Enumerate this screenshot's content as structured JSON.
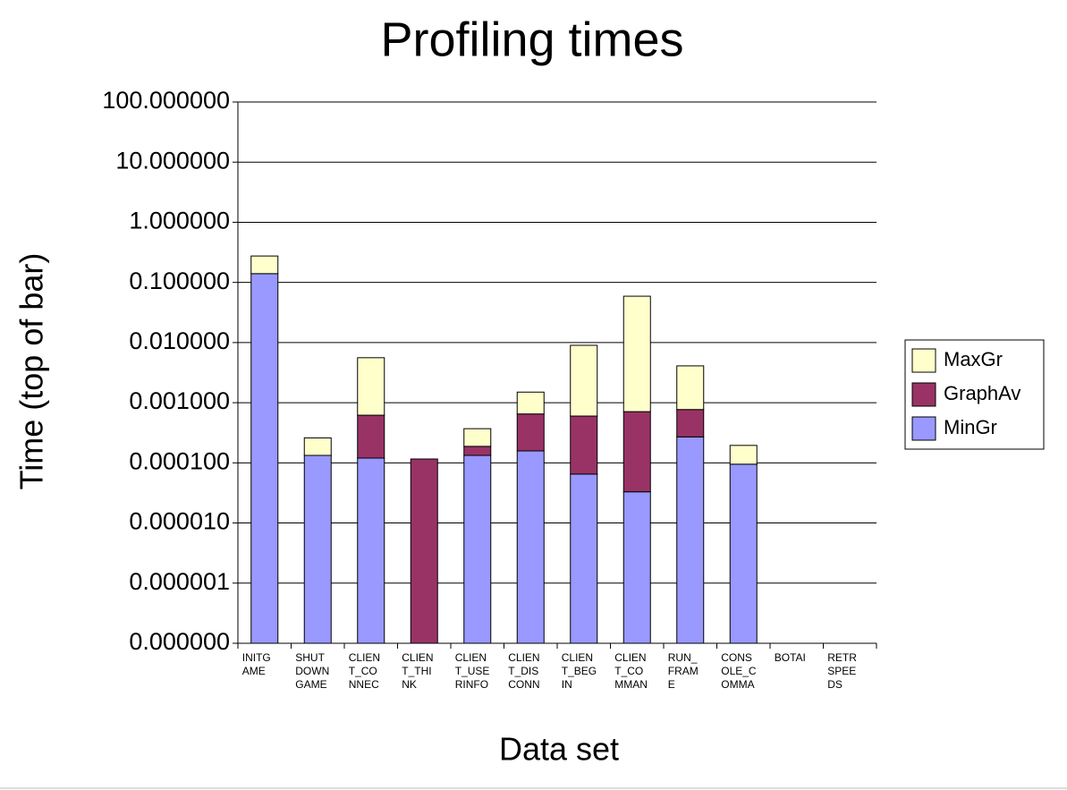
{
  "chart_data": {
    "type": "bar",
    "stacked": true,
    "log_scale": true,
    "title": "Profiling times",
    "y_label": "Time (top of bar)",
    "x_label": "Data set",
    "categories": [
      [
        "INITG",
        "AME"
      ],
      [
        "SHUT",
        "DOWN",
        "GAME"
      ],
      [
        "CLIEN",
        "T_CO",
        "NNEC"
      ],
      [
        "CLIEN",
        "T_THI",
        "NK"
      ],
      [
        "CLIEN",
        "T_USE",
        "RINFO"
      ],
      [
        "CLIEN",
        "T_DIS",
        "CONN"
      ],
      [
        "CLIEN",
        "T_BEG",
        "IN"
      ],
      [
        "CLIEN",
        "T_CO",
        "MMAN"
      ],
      [
        "RUN_",
        "FRAM",
        "E"
      ],
      [
        "CONS",
        "OLE_C",
        "OMMA"
      ],
      [
        "BOTAI"
      ],
      [
        "RETR",
        "SPEE",
        "DS"
      ]
    ],
    "series": [
      {
        "name": "MinGr",
        "color": "#9999ff",
        "values": [
          0.14,
          0.000133,
          0.00012,
          null,
          0.000133,
          0.000158,
          6.5e-05,
          3.3e-05,
          0.00027,
          9.5e-05,
          null,
          null
        ]
      },
      {
        "name": "GraphAv",
        "color": "#993366",
        "values": [
          null,
          null,
          0.00062,
          0.000116,
          0.000188,
          0.00065,
          0.0006,
          0.00071,
          0.00077,
          null,
          null,
          null
        ]
      },
      {
        "name": "MaxGr",
        "color": "#ffffcc",
        "values": [
          0.275,
          0.00026,
          0.0056,
          null,
          0.00037,
          0.0015,
          0.009,
          0.059,
          0.0041,
          0.000195,
          null,
          null
        ]
      }
    ],
    "ylim": [
      1e-07,
      100
    ],
    "yticks": [
      {
        "value": 1e-07,
        "label": "0.000000"
      },
      {
        "value": 1e-06,
        "label": "0.000001"
      },
      {
        "value": 1e-05,
        "label": "0.000010"
      },
      {
        "value": 0.0001,
        "label": "0.000100"
      },
      {
        "value": 0.001,
        "label": "0.001000"
      },
      {
        "value": 0.01,
        "label": "0.010000"
      },
      {
        "value": 0.1,
        "label": "0.100000"
      },
      {
        "value": 1,
        "label": "1.000000"
      },
      {
        "value": 10,
        "label": "10.000000"
      },
      {
        "value": 100,
        "label": "100.000000"
      }
    ],
    "grid": true,
    "legend": "right"
  }
}
